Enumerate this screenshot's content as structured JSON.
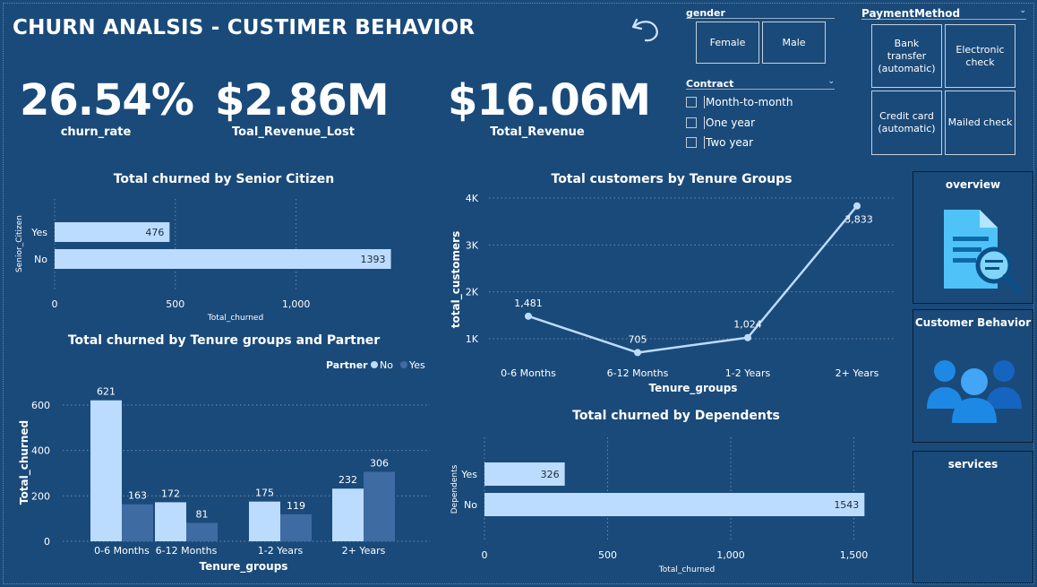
{
  "header": {
    "title": "CHURN ANALSIS - CUSTIMER BEHAVIOR"
  },
  "kpis": [
    {
      "value": "26.54%",
      "label": "churn_rate"
    },
    {
      "value": "$2.86M",
      "label": "Toal_Revenue_Lost"
    },
    {
      "value": "$16.06M",
      "label": "Total_Revenue"
    }
  ],
  "slicers": {
    "gender": {
      "title": "gender",
      "options": [
        "Female",
        "Male"
      ]
    },
    "contract": {
      "title": "Contract",
      "options": [
        "Month-to-month",
        "One year",
        "Two year"
      ]
    },
    "payment": {
      "title": "PaymentMethod",
      "options": [
        "Bank transfer (automatic)",
        "Electronic check",
        "Credit card (automatic)",
        "Mailed check"
      ]
    }
  },
  "nav": {
    "overview": "overview",
    "customer_behavior": "Customer Behavior",
    "services": "services"
  },
  "colors": {
    "background": "#1a4a7a",
    "light_bar": "#bcdcff",
    "dark_bar": "#3f6ba3",
    "line": "#bcdcff"
  },
  "chart_data": [
    {
      "id": "senior",
      "type": "bar",
      "orientation": "horizontal",
      "title": "Total churned by Senior Citizen",
      "categories": [
        "Yes",
        "No"
      ],
      "values": [
        476,
        1393
      ],
      "xlabel": "Total_churned",
      "ylabel": "Senior_Citizen",
      "xticks": [
        "0",
        "500",
        "1,000"
      ],
      "xlim": [
        0,
        1393
      ],
      "grid": true
    },
    {
      "id": "tenure_partner",
      "type": "bar",
      "title": "Total churned by Tenure groups and Partner",
      "categories": [
        "0-6 Months",
        "6-12 Months",
        "1-2 Years",
        "2+ Years"
      ],
      "series": [
        {
          "name": "No",
          "values": [
            621,
            172,
            175,
            232
          ]
        },
        {
          "name": "Yes",
          "values": [
            163,
            81,
            119,
            306
          ]
        }
      ],
      "legend_title": "Partner",
      "legend_placement": "top-right",
      "xlabel": "Tenure_groups",
      "ylabel": "Total_churned",
      "yticks": [
        "0",
        "200",
        "400",
        "600"
      ],
      "ylim": [
        0,
        621
      ],
      "grid": true
    },
    {
      "id": "tenure_customers",
      "type": "line",
      "title": "Total customers by Tenure Groups",
      "categories": [
        "0-6 Months",
        "6-12 Months",
        "1-2 Years",
        "2+ Years"
      ],
      "values": [
        1481,
        705,
        1024,
        3833
      ],
      "labels": [
        "1,481",
        "705",
        "1,024",
        "3,833"
      ],
      "xlabel": "Tenure_groups",
      "ylabel": "total_customers",
      "yticks": [
        "1K",
        "2K",
        "3K",
        "4K"
      ],
      "ylim": [
        700,
        4000
      ],
      "grid": true
    },
    {
      "id": "dependents",
      "type": "bar",
      "orientation": "horizontal",
      "title": "Total churned by Dependents",
      "categories": [
        "Yes",
        "No"
      ],
      "values": [
        326,
        1543
      ],
      "xlabel": "Total_churned",
      "ylabel": "Dependents",
      "xticks": [
        "0",
        "500",
        "1,000",
        "1,500"
      ],
      "xlim": [
        0,
        1543
      ],
      "grid": true
    }
  ]
}
